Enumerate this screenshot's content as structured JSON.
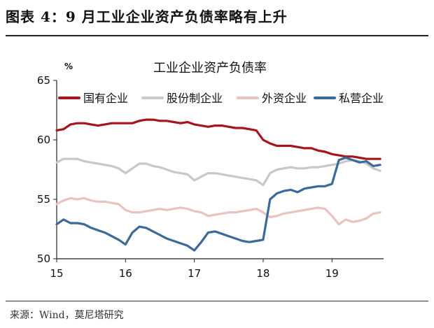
{
  "header": {
    "title": "图表 4：9 月工业企业资产负债率略有上升"
  },
  "source": "来源：Wind，莫尼塔研究",
  "chart_data": {
    "type": "line",
    "title": "工业企业资产负债率",
    "ylabel": "%",
    "xlabel": "",
    "ylim": [
      50,
      65
    ],
    "yticks": [
      50,
      55,
      60,
      65
    ],
    "xlim": [
      15.0,
      19.75
    ],
    "xticks": [
      15,
      16,
      17,
      18,
      19
    ],
    "xtick_labels": [
      "15",
      "16",
      "17",
      "18",
      "19"
    ],
    "grid": false,
    "legend_position": "top",
    "x": [
      15.0,
      15.1,
      15.2,
      15.3,
      15.4,
      15.5,
      15.6,
      15.7,
      15.8,
      15.9,
      16.0,
      16.1,
      16.2,
      16.3,
      16.4,
      16.5,
      16.6,
      16.7,
      16.8,
      16.9,
      17.0,
      17.1,
      17.2,
      17.3,
      17.4,
      17.5,
      17.6,
      17.7,
      17.8,
      17.9,
      18.0,
      18.1,
      18.2,
      18.3,
      18.4,
      18.5,
      18.6,
      18.7,
      18.8,
      18.9,
      19.0,
      19.1,
      19.2,
      19.3,
      19.4,
      19.5,
      19.6,
      19.7
    ],
    "series": [
      {
        "name": "国有企业",
        "color": "#a6141c",
        "values": [
          60.8,
          60.9,
          61.3,
          61.4,
          61.4,
          61.3,
          61.2,
          61.3,
          61.4,
          61.4,
          61.4,
          61.4,
          61.6,
          61.7,
          61.7,
          61.6,
          61.6,
          61.5,
          61.4,
          61.5,
          61.3,
          61.2,
          61.1,
          61.2,
          61.2,
          61.1,
          61.0,
          61.0,
          60.9,
          60.8,
          60.0,
          59.7,
          59.5,
          59.5,
          59.5,
          59.4,
          59.3,
          59.3,
          59.1,
          59.0,
          58.8,
          58.7,
          58.6,
          58.6,
          58.5,
          58.4,
          58.4,
          58.4
        ]
      },
      {
        "name": "股份制企业",
        "color": "#c8c8c8",
        "values": [
          58.1,
          58.4,
          58.4,
          58.4,
          58.2,
          58.1,
          58.0,
          57.9,
          57.8,
          57.6,
          57.2,
          57.6,
          58.0,
          58.0,
          57.8,
          57.7,
          57.5,
          57.3,
          57.2,
          57.1,
          56.6,
          56.9,
          57.2,
          57.2,
          57.1,
          57.0,
          56.9,
          56.8,
          56.7,
          56.6,
          56.2,
          57.2,
          57.5,
          57.6,
          57.7,
          57.6,
          57.6,
          57.7,
          57.7,
          57.8,
          57.9,
          58.0,
          58.2,
          58.3,
          58.2,
          58.0,
          57.6,
          57.4
        ]
      },
      {
        "name": "外资企业",
        "color": "#eac3c1",
        "values": [
          54.6,
          54.9,
          55.1,
          55.0,
          55.1,
          54.9,
          54.8,
          54.8,
          54.7,
          54.6,
          54.1,
          53.9,
          53.9,
          54.0,
          54.1,
          54.2,
          54.1,
          54.2,
          54.3,
          54.2,
          54.0,
          53.9,
          53.6,
          53.7,
          53.8,
          53.9,
          53.9,
          54.0,
          54.1,
          54.2,
          53.9,
          53.5,
          53.6,
          53.8,
          53.9,
          54.0,
          54.1,
          54.2,
          54.3,
          54.2,
          53.6,
          52.9,
          53.3,
          53.1,
          53.2,
          53.4,
          53.8,
          53.9
        ]
      },
      {
        "name": "私营企业",
        "color": "#3b6a9a",
        "values": [
          52.9,
          53.3,
          53.0,
          53.0,
          52.9,
          52.6,
          52.4,
          52.2,
          51.9,
          51.6,
          51.2,
          52.2,
          52.7,
          52.6,
          52.3,
          52.0,
          51.7,
          51.5,
          51.3,
          51.1,
          50.7,
          51.4,
          52.2,
          52.3,
          52.1,
          51.9,
          51.7,
          51.5,
          51.4,
          51.5,
          51.6,
          55.0,
          55.5,
          55.7,
          55.8,
          55.6,
          55.9,
          56.0,
          56.1,
          56.1,
          56.3,
          58.3,
          58.5,
          58.3,
          58.1,
          58.2,
          57.8,
          57.9
        ]
      }
    ]
  }
}
